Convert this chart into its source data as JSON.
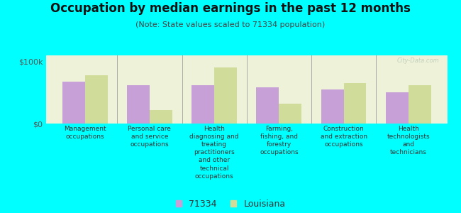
{
  "title": "Occupation by median earnings in the past 12 months",
  "subtitle": "(Note: State values scaled to 71334 population)",
  "background_color": "#00FFFF",
  "plot_bg_color": "#eef2d8",
  "categories": [
    "Management\noccupations",
    "Personal care\nand service\noccupations",
    "Health\ndiagnosing and\ntreating\npractitioners\nand other\ntechnical\noccupations",
    "Farming,\nfishing, and\nforestry\noccupations",
    "Construction\nand extraction\noccupations",
    "Health\ntechnologists\nand\ntechnicians"
  ],
  "values_71334": [
    68000,
    62000,
    62000,
    58000,
    55000,
    50000
  ],
  "values_louisiana": [
    78000,
    22000,
    90000,
    32000,
    65000,
    62000
  ],
  "color_71334": "#c8a0d8",
  "color_louisiana": "#d0dc9a",
  "ylim": [
    0,
    110000
  ],
  "yticks": [
    0,
    100000
  ],
  "ytick_labels": [
    "$0",
    "$100k"
  ],
  "legend_71334": "71334",
  "legend_louisiana": "Louisiana",
  "watermark": "City-Data.com",
  "bar_width": 0.35,
  "title_fontsize": 12,
  "subtitle_fontsize": 8,
  "label_fontsize": 6.5,
  "tick_fontsize": 8
}
